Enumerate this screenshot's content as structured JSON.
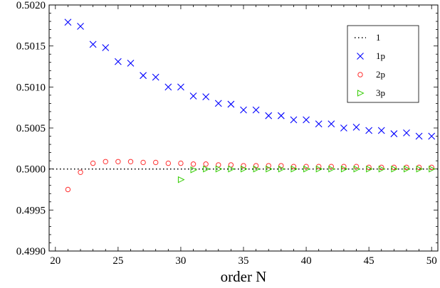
{
  "chart_data": {
    "type": "scatter",
    "title": "",
    "xlabel": "order N",
    "ylabel": "",
    "xlim": [
      19.5,
      50.5
    ],
    "ylim": [
      0.499,
      0.502
    ],
    "xticks": [
      "20",
      "25",
      "30",
      "35",
      "40",
      "45",
      "50"
    ],
    "yticks": [
      "0.4990",
      "0.4995",
      "0.5000",
      "0.5005",
      "0.5010",
      "0.5015",
      "0.5020"
    ],
    "grid": false,
    "legend_position": "top-right",
    "series": [
      {
        "name": "1",
        "marker": "dotted-line",
        "color": "#000000",
        "x": [
          19.5,
          50.5
        ],
        "y": [
          0.5,
          0.5
        ]
      },
      {
        "name": "1p",
        "marker": "x",
        "color": "#0000ff",
        "x": [
          21,
          22,
          23,
          24,
          25,
          26,
          27,
          28,
          29,
          30,
          31,
          32,
          33,
          34,
          35,
          36,
          37,
          38,
          39,
          40,
          41,
          42,
          43,
          44,
          45,
          46,
          47,
          48,
          49,
          50
        ],
        "y": [
          0.50179,
          0.50174,
          0.50152,
          0.50148,
          0.50131,
          0.50129,
          0.50114,
          0.50112,
          0.501,
          0.501,
          0.50089,
          0.50088,
          0.5008,
          0.50079,
          0.50072,
          0.50072,
          0.50065,
          0.50065,
          0.5006,
          0.5006,
          0.50055,
          0.50055,
          0.5005,
          0.50051,
          0.50047,
          0.50047,
          0.50043,
          0.50044,
          0.5004,
          0.5004
        ]
      },
      {
        "name": "2p",
        "marker": "circle",
        "color": "#ff3030",
        "x": [
          21,
          22,
          23,
          24,
          25,
          26,
          27,
          28,
          29,
          30,
          31,
          32,
          33,
          34,
          35,
          36,
          37,
          38,
          39,
          40,
          41,
          42,
          43,
          44,
          45,
          46,
          47,
          48,
          49,
          50
        ],
        "y": [
          0.49975,
          0.49996,
          0.50007,
          0.50009,
          0.50009,
          0.50009,
          0.50008,
          0.50008,
          0.50007,
          0.50007,
          0.50006,
          0.50006,
          0.50005,
          0.50005,
          0.50004,
          0.50004,
          0.50004,
          0.50004,
          0.50003,
          0.50003,
          0.50003,
          0.50003,
          0.50003,
          0.50003,
          0.50002,
          0.50002,
          0.50002,
          0.50002,
          0.50002,
          0.50002
        ]
      },
      {
        "name": "3p",
        "marker": "triangle-right",
        "color": "#33cc00",
        "x": [
          30,
          31,
          32,
          33,
          34,
          35,
          36,
          37,
          38,
          39,
          40,
          41,
          42,
          43,
          44,
          45,
          46,
          47,
          48,
          49,
          50
        ],
        "y": [
          0.49987,
          0.49999,
          0.5,
          0.5,
          0.5,
          0.5,
          0.5,
          0.5,
          0.5,
          0.5,
          0.5,
          0.5,
          0.5,
          0.5,
          0.5,
          0.5,
          0.5,
          0.5,
          0.5,
          0.5,
          0.5
        ]
      }
    ]
  }
}
